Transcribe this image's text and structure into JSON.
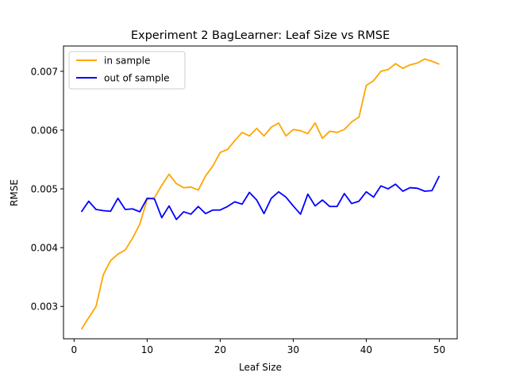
{
  "chart_data": {
    "type": "line",
    "title": "Experiment 2 BagLearner: Leaf Size vs RMSE",
    "xlabel": "Leaf Size",
    "ylabel": "RMSE",
    "xlim": [
      -1.45,
      52.45
    ],
    "ylim": [
      0.00245,
      0.00743
    ],
    "xticks": [
      0,
      10,
      20,
      30,
      40,
      50
    ],
    "xtick_labels": [
      "0",
      "10",
      "20",
      "30",
      "40",
      "50"
    ],
    "yticks": [
      0.003,
      0.004,
      0.005,
      0.006,
      0.007
    ],
    "ytick_labels": [
      "0.003",
      "0.004",
      "0.005",
      "0.006",
      "0.007"
    ],
    "grid": false,
    "legend_position": "upper-left",
    "x": [
      1,
      2,
      3,
      4,
      5,
      6,
      7,
      8,
      9,
      10,
      11,
      12,
      13,
      14,
      15,
      16,
      17,
      18,
      19,
      20,
      21,
      22,
      23,
      24,
      25,
      26,
      27,
      28,
      29,
      30,
      31,
      32,
      33,
      34,
      35,
      36,
      37,
      38,
      39,
      40,
      41,
      42,
      43,
      44,
      45,
      46,
      47,
      48,
      49,
      50
    ],
    "series": [
      {
        "name": "in sample",
        "color": "#ffa500",
        "values": [
          0.00261,
          0.00281,
          0.003,
          0.00354,
          0.00378,
          0.00389,
          0.00396,
          0.00416,
          0.0044,
          0.00482,
          0.00485,
          0.00506,
          0.00525,
          0.00509,
          0.00502,
          0.00503,
          0.00498,
          0.00522,
          0.00539,
          0.00562,
          0.00567,
          0.00582,
          0.00596,
          0.0059,
          0.00603,
          0.0059,
          0.00605,
          0.00612,
          0.0059,
          0.00601,
          0.00599,
          0.00594,
          0.00612,
          0.00586,
          0.00598,
          0.00596,
          0.00601,
          0.00614,
          0.00622,
          0.00676,
          0.00684,
          0.007,
          0.00703,
          0.00713,
          0.00705,
          0.00711,
          0.00714,
          0.00721,
          0.00717,
          0.00712
        ]
      },
      {
        "name": "out of sample",
        "color": "#0000ff",
        "values": [
          0.00461,
          0.00479,
          0.00465,
          0.00463,
          0.00462,
          0.00484,
          0.00465,
          0.00466,
          0.00461,
          0.00484,
          0.00483,
          0.00451,
          0.00471,
          0.00448,
          0.00461,
          0.00457,
          0.0047,
          0.00458,
          0.00464,
          0.00464,
          0.0047,
          0.00478,
          0.00474,
          0.00494,
          0.00481,
          0.00458,
          0.00484,
          0.00495,
          0.00486,
          0.00471,
          0.00457,
          0.00491,
          0.00471,
          0.00481,
          0.0047,
          0.0047,
          0.00492,
          0.00475,
          0.00479,
          0.00495,
          0.00486,
          0.00505,
          0.005,
          0.00508,
          0.00496,
          0.00502,
          0.00501,
          0.00496,
          0.00497,
          0.00522
        ]
      }
    ]
  }
}
